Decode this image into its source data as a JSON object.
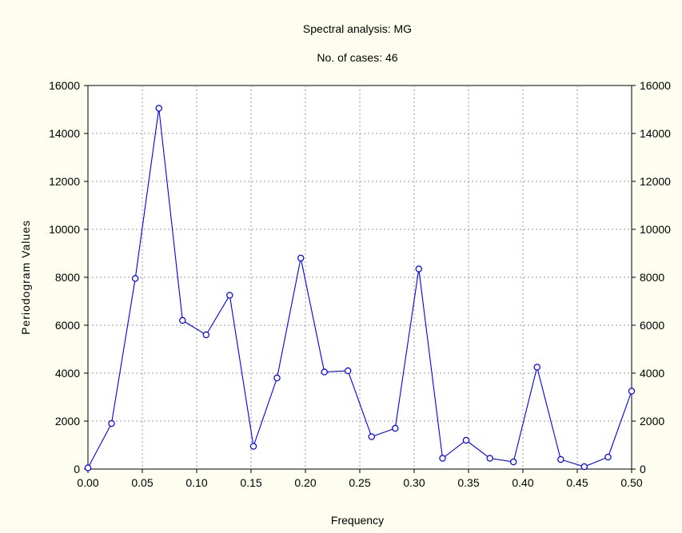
{
  "chart_data": {
    "type": "line",
    "title": "Spectral analysis: MG",
    "subtitle": "No. of cases: 46",
    "xlabel": "Frequency",
    "ylabel": "Periodogram Values",
    "xlim": [
      0,
      0.5
    ],
    "ylim": [
      0,
      16000
    ],
    "xticks": [
      0.0,
      0.05,
      0.1,
      0.15,
      0.2,
      0.25,
      0.3,
      0.35,
      0.4,
      0.45,
      0.5
    ],
    "xtick_labels": [
      "0.00",
      "0.05",
      "0.10",
      "0.15",
      "0.20",
      "0.25",
      "0.30",
      "0.35",
      "0.40",
      "0.45",
      "0.50"
    ],
    "yticks": [
      0,
      2000,
      4000,
      6000,
      8000,
      10000,
      12000,
      14000,
      16000
    ],
    "ytick_labels": [
      "0",
      "2000",
      "4000",
      "6000",
      "8000",
      "10000",
      "12000",
      "14000",
      "16000"
    ],
    "right_axis_mirrored": true,
    "grid": true,
    "series_color": "#0000ee",
    "marker": "open-circle",
    "x": [
      0.0,
      0.0217,
      0.0435,
      0.0652,
      0.087,
      0.1087,
      0.1304,
      0.1522,
      0.1739,
      0.1957,
      0.2174,
      0.2391,
      0.2609,
      0.2826,
      0.3043,
      0.3261,
      0.3478,
      0.3696,
      0.3913,
      0.413,
      0.4348,
      0.4565,
      0.4783,
      0.5
    ],
    "values": [
      50,
      1900,
      7950,
      15050,
      6200,
      5600,
      7250,
      950,
      3800,
      8800,
      4050,
      4100,
      1350,
      1700,
      8350,
      450,
      1200,
      450,
      300,
      4250,
      400,
      100,
      500,
      3250
    ]
  }
}
